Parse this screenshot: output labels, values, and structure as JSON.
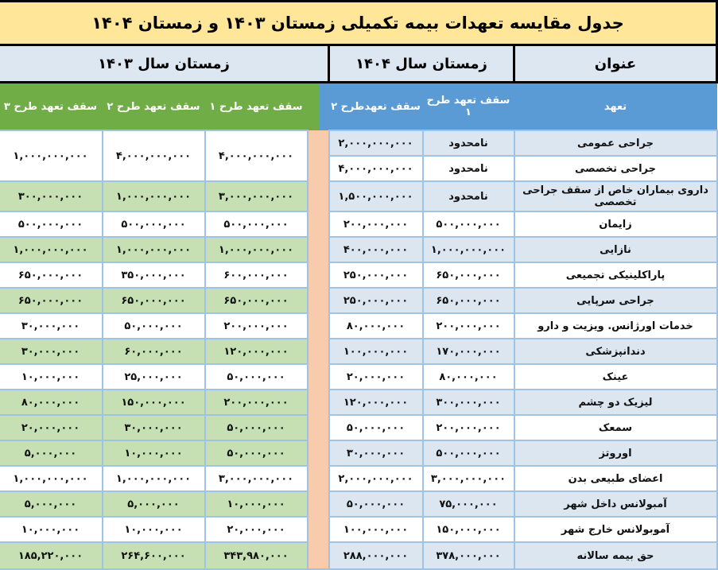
{
  "title": "جدول مقایسه تعهدات بیمه تکمیلی زمستان ۱۴۰۳ و زمستان ۱۴۰۴",
  "header": {
    "year_1403": "زمستان سال ۱۴۰۳",
    "year_1404": "زمستان سال ۱۴۰۴",
    "title_col": "عنوان"
  },
  "subheader": {
    "p3_1403": "سقف تعهد طرح ۳",
    "p2_1403": "سقف تعهد طرح ۲",
    "p1_1403": "سقف تعهد طرح ۱",
    "p2_1404": "سقف تعهدطرح ۲",
    "p1_1404": "سقف تعهد طرح ۱",
    "commitment": "تعهد"
  },
  "colors": {
    "title_bg": "#ffe699",
    "header_bg": "#dde7f2",
    "green_header": "#70ad47",
    "blue_header": "#5b9bd5",
    "green_row": "#c6e0b4",
    "blue_row": "#dce6f1",
    "separator": "#f8cbad",
    "grid_border": "#9dc3e6"
  },
  "rows": [
    {
      "label": "جراحی عمومی",
      "y1404_p1": "نامحدود",
      "y1404_p2": "۲,۰۰۰,۰۰۰,۰۰۰",
      "y1403_p1": "۴,۰۰۰,۰۰۰,۰۰۰",
      "y1403_p2": "۴,۰۰۰,۰۰۰,۰۰۰",
      "y1403_p3": "۱,۰۰۰,۰۰۰,۰۰۰",
      "rowspan_1403": 2,
      "sr": "b",
      "sl": "w"
    },
    {
      "label": "جراحی تخصصی",
      "y1404_p1": "نامحدود",
      "y1404_p2": "۴,۰۰۰,۰۰۰,۰۰۰",
      "sr": "w",
      "sl": "w"
    },
    {
      "label": "داروی بیماران خاص از سقف جراحی تخصصی",
      "y1404_p1": "نامحدود",
      "y1404_p2": "۱,۵۰۰,۰۰۰,۰۰۰",
      "y1403_p1": "۳,۰۰۰,۰۰۰,۰۰۰",
      "y1403_p2": "۱,۰۰۰,۰۰۰,۰۰۰",
      "y1403_p3": "۳۰۰,۰۰۰,۰۰۰",
      "sr": "b",
      "sl": "g"
    },
    {
      "label": "زایمان",
      "y1404_p1": "۵۰۰,۰۰۰,۰۰۰",
      "y1404_p2": "۲۰۰,۰۰۰,۰۰۰",
      "y1403_p1": "۵۰۰,۰۰۰,۰۰۰",
      "y1403_p2": "۵۰۰,۰۰۰,۰۰۰",
      "y1403_p3": "۵۰۰,۰۰۰,۰۰۰",
      "sr": "w",
      "sl": "w"
    },
    {
      "label": "نازایی",
      "y1404_p1": "۱,۰۰۰,۰۰۰,۰۰۰",
      "y1404_p2": "۴۰۰,۰۰۰,۰۰۰",
      "y1403_p1": "۱,۰۰۰,۰۰۰,۰۰۰",
      "y1403_p2": "۱,۰۰۰,۰۰۰,۰۰۰",
      "y1403_p3": "۱,۰۰۰,۰۰۰,۰۰۰",
      "sr": "b",
      "sl": "g"
    },
    {
      "label": "پاراکلینیکی تجمیعی",
      "y1404_p1": "۶۵۰,۰۰۰,۰۰۰",
      "y1404_p2": "۲۵۰,۰۰۰,۰۰۰",
      "y1403_p1": "۶۰۰,۰۰۰,۰۰۰",
      "y1403_p2": "۳۵۰,۰۰۰,۰۰۰",
      "y1403_p3": "۶۵۰,۰۰۰,۰۰۰",
      "sr": "w",
      "sl": "w"
    },
    {
      "label": "جراحی سرپایی",
      "y1404_p1": "۶۵۰,۰۰۰,۰۰۰",
      "y1404_p2": "۲۵۰,۰۰۰,۰۰۰",
      "y1403_p1": "۶۵۰,۰۰۰,۰۰۰",
      "y1403_p2": "۶۵۰,۰۰۰,۰۰۰",
      "y1403_p3": "۶۵۰,۰۰۰,۰۰۰",
      "sr": "b",
      "sl": "g"
    },
    {
      "label": "خدمات اورژانس. ویزیت و دارو",
      "y1404_p1": "۲۰۰,۰۰۰,۰۰۰",
      "y1404_p2": "۸۰,۰۰۰,۰۰۰",
      "y1403_p1": "۲۰۰,۰۰۰,۰۰۰",
      "y1403_p2": "۵۰,۰۰۰,۰۰۰",
      "y1403_p3": "۳۰,۰۰۰,۰۰۰",
      "sr": "w",
      "sl": "w"
    },
    {
      "label": "دندانپزشکی",
      "y1404_p1": "۱۷۰,۰۰۰,۰۰۰",
      "y1404_p2": "۱۰۰,۰۰۰,۰۰۰",
      "y1403_p1": "۱۲۰,۰۰۰,۰۰۰",
      "y1403_p2": "۶۰,۰۰۰,۰۰۰",
      "y1403_p3": "۳۰,۰۰۰,۰۰۰",
      "sr": "b",
      "sl": "g"
    },
    {
      "label": "عینک",
      "y1404_p1": "۸۰,۰۰۰,۰۰۰",
      "y1404_p2": "۲۰,۰۰۰,۰۰۰",
      "y1403_p1": "۵۰,۰۰۰,۰۰۰",
      "y1403_p2": "۲۵,۰۰۰,۰۰۰",
      "y1403_p3": "۱۰,۰۰۰,۰۰۰",
      "sr": "w",
      "sl": "w"
    },
    {
      "label": "لیزیک دو چشم",
      "y1404_p1": "۳۰۰,۰۰۰,۰۰۰",
      "y1404_p2": "۱۲۰,۰۰۰,۰۰۰",
      "y1403_p1": "۲۰۰,۰۰۰,۰۰۰",
      "y1403_p2": "۱۵۰,۰۰۰,۰۰۰",
      "y1403_p3": "۸۰,۰۰۰,۰۰۰",
      "sr": "b",
      "sl": "g"
    },
    {
      "label": "سمعک",
      "y1404_p1": "۲۰۰,۰۰۰,۰۰۰",
      "y1404_p2": "۵۰,۰۰۰,۰۰۰",
      "y1403_p1": "۵۰,۰۰۰,۰۰۰",
      "y1403_p2": "۳۰,۰۰۰,۰۰۰",
      "y1403_p3": "۲۰,۰۰۰,۰۰۰",
      "sr": "w",
      "sl": "g"
    },
    {
      "label": "اوروتز",
      "y1404_p1": "۵۰۰,۰۰۰,۰۰۰",
      "y1404_p2": "۳۰,۰۰۰,۰۰۰",
      "y1403_p1": "۵۰,۰۰۰,۰۰۰",
      "y1403_p2": "۱۰,۰۰۰,۰۰۰",
      "y1403_p3": "۵,۰۰۰,۰۰۰",
      "sr": "b",
      "sl": "g"
    },
    {
      "label": "اعضای طبیعی بدن",
      "y1404_p1": "۳,۰۰۰,۰۰۰,۰۰۰",
      "y1404_p2": "۲,۰۰۰,۰۰۰,۰۰۰",
      "y1403_p1": "۳,۰۰۰,۰۰۰,۰۰۰",
      "y1403_p2": "۱,۰۰۰,۰۰۰,۰۰۰",
      "y1403_p3": "۱,۰۰۰,۰۰۰,۰۰۰",
      "sr": "w",
      "sl": "w"
    },
    {
      "label": "آمبولانس داخل شهر",
      "y1404_p1": "۷۵,۰۰۰,۰۰۰",
      "y1404_p2": "۵۰,۰۰۰,۰۰۰",
      "y1403_p1": "۱۰,۰۰۰,۰۰۰",
      "y1403_p2": "۵,۰۰۰,۰۰۰",
      "y1403_p3": "۵,۰۰۰,۰۰۰",
      "sr": "b",
      "sl": "g"
    },
    {
      "label": "آموبولانس خارج شهر",
      "y1404_p1": "۱۵۰,۰۰۰,۰۰۰",
      "y1404_p2": "۱۰۰,۰۰۰,۰۰۰",
      "y1403_p1": "۲۰,۰۰۰,۰۰۰",
      "y1403_p2": "۱۰,۰۰۰,۰۰۰",
      "y1403_p3": "۱۰,۰۰۰,۰۰۰",
      "sr": "w",
      "sl": "w"
    },
    {
      "label": "حق بیمه سالانه",
      "y1404_p1": "۳۷۸,۰۰۰,۰۰۰",
      "y1404_p2": "۲۸۸,۰۰۰,۰۰۰",
      "y1403_p1": "۳۴۳,۹۸۰,۰۰۰",
      "y1403_p2": "۲۶۴,۶۰۰,۰۰۰",
      "y1403_p3": "۱۸۵,۲۲۰,۰۰۰",
      "sr": "b",
      "sl": "g"
    }
  ]
}
